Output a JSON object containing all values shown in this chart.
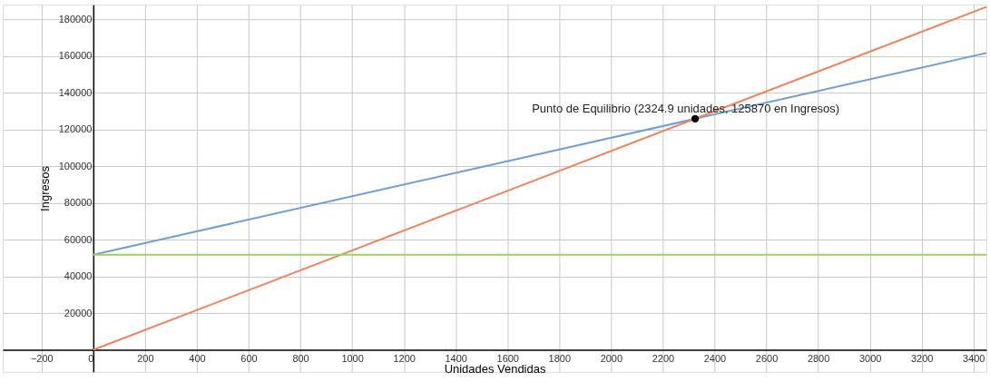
{
  "chart_data": {
    "type": "line",
    "xlabel": "Unidades Vendidas",
    "ylabel": "Ingresos",
    "xlim": [
      -350,
      3450
    ],
    "ylim": [
      -12000,
      188000
    ],
    "xticks": [
      -200,
      0,
      200,
      400,
      600,
      800,
      1000,
      1200,
      1400,
      1600,
      1800,
      2000,
      2200,
      2400,
      2600,
      2800,
      3000,
      3200,
      3400
    ],
    "yticks": [
      20000,
      40000,
      60000,
      80000,
      100000,
      120000,
      140000,
      160000,
      180000
    ],
    "grid": true,
    "series": [
      {
        "color": "#6d9fd6",
        "x": [
          0,
          3450
        ],
        "values": [
          51800,
          161700
        ]
      },
      {
        "color": "#f0845c",
        "x": [
          0,
          3450
        ],
        "values": [
          0,
          186800
        ]
      },
      {
        "color": "#9dd06f",
        "x": [
          0,
          3450
        ],
        "values": [
          51800,
          51800
        ]
      },
      {
        "type": "scatter",
        "color": "#000000",
        "x": [
          2324.9
        ],
        "values": [
          125870
        ]
      }
    ],
    "annotations": [
      {
        "text": "Punto de Equilibrio (2324.9 unidades, 125870 en Ingresos)",
        "x": 2324.9,
        "y": 125870
      }
    ]
  }
}
